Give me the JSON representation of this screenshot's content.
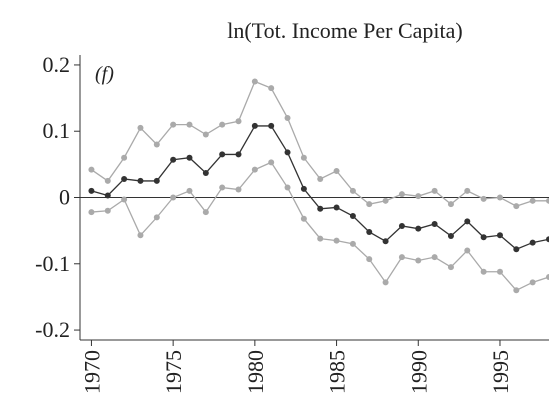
{
  "chart_data": {
    "type": "line",
    "title": "ln(Tot. Income Per Capita)",
    "annotation": "(f)",
    "x": [
      1970,
      1971,
      1972,
      1973,
      1974,
      1975,
      1976,
      1977,
      1978,
      1979,
      1980,
      1981,
      1982,
      1983,
      1984,
      1985,
      1986,
      1987,
      1988,
      1989,
      1990,
      1991,
      1992,
      1993,
      1994,
      1995,
      1996,
      1997,
      1998
    ],
    "series": [
      {
        "color": "#aaaaaa",
        "values": [
          0.042,
          0.025,
          0.06,
          0.105,
          0.08,
          0.11,
          0.11,
          0.095,
          0.11,
          0.115,
          0.175,
          0.165,
          0.12,
          0.06,
          0.028,
          0.04,
          0.01,
          -0.01,
          -0.005,
          0.005,
          0.002,
          0.01,
          -0.01,
          0.01,
          -0.002,
          0.0,
          -0.013,
          -0.005,
          -0.005
        ]
      },
      {
        "color": "#aaaaaa",
        "values": [
          -0.022,
          -0.02,
          -0.003,
          -0.057,
          -0.03,
          0.0,
          0.01,
          -0.022,
          0.015,
          0.012,
          0.042,
          0.053,
          0.015,
          -0.032,
          -0.062,
          -0.065,
          -0.07,
          -0.093,
          -0.128,
          -0.09,
          -0.095,
          -0.09,
          -0.105,
          -0.08,
          -0.112,
          -0.112,
          -0.14,
          -0.128,
          -0.12
        ]
      },
      {
        "color": "#333333",
        "values": [
          0.01,
          0.003,
          0.028,
          0.025,
          0.025,
          0.057,
          0.06,
          0.037,
          0.065,
          0.065,
          0.108,
          0.108,
          0.068,
          0.013,
          -0.017,
          -0.015,
          -0.028,
          -0.052,
          -0.066,
          -0.043,
          -0.047,
          -0.04,
          -0.058,
          -0.036,
          -0.06,
          -0.057,
          -0.078,
          -0.068,
          -0.063
        ]
      }
    ],
    "reference_line": 0,
    "xlim": [
      1969.3,
      1998
    ],
    "xticks": [
      1970,
      1975,
      1980,
      1985,
      1990,
      1995
    ],
    "ylim": [
      -0.215,
      0.215
    ],
    "yticks": [
      0.2,
      0.1,
      0,
      -0.1,
      -0.2
    ]
  }
}
